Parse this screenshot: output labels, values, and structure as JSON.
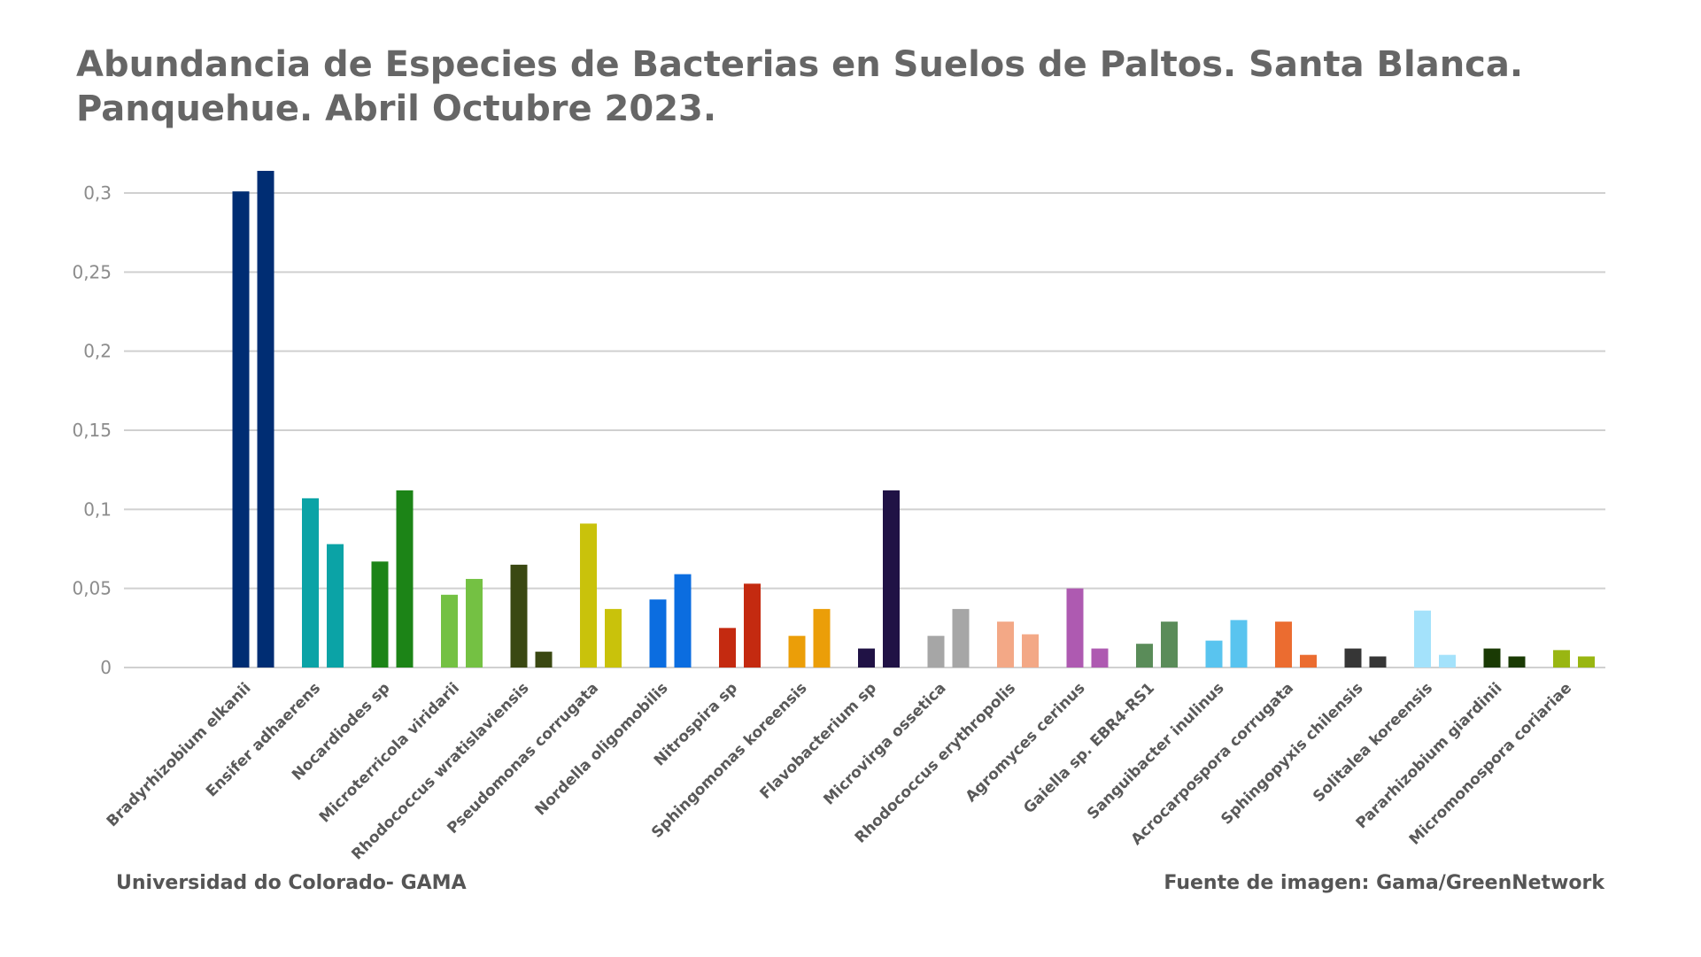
{
  "title_lines": [
    "Abundancia de Especies de Bacterias en Suelos de Paltos. Santa Blanca.",
    "Panquehue. Abril Octubre 2023."
  ],
  "footer": {
    "left": "Universidad do Colorado- GAMA",
    "right": "Fuente de imagen: Gama/GreenNetwork"
  },
  "chart_data": {
    "type": "bar",
    "title": "Abundancia de Especies de Bacterias en Suelos de Paltos. Santa Blanca. Panquehue. Abril Octubre 2023.",
    "xlabel": "",
    "ylabel": "",
    "ylim": [
      0,
      0.3
    ],
    "yticks": [
      0,
      0.05,
      0.1,
      0.15,
      0.2,
      0.25,
      0.3
    ],
    "ytick_labels": [
      "0",
      "0,05",
      "0,1",
      "0,15",
      "0,2",
      "0,25",
      "0,3"
    ],
    "grid": true,
    "legend": false,
    "categories": [
      "Bradyrhizobium elkanii",
      "Ensifer adhaerens",
      "Nocardiodes sp",
      "Microterricola viridarii",
      "Rhodococcus wratislaviensis",
      "Pseudomonas corrugata",
      "Nordella oligomobilis",
      "Nitrospira sp",
      "Sphingomonas koreensis",
      "Flavobacterium sp",
      "Microvirga ossetica",
      "Rhodococcus erythropolis",
      "Agromyces cerinus",
      "Gaiella sp. EBR4-RS1",
      "Sanguibacter inulinus",
      "Acrocarpospora corrugata",
      "Sphingopyxis chilensis",
      "Solitalea koreensis",
      "Pararhizobium giardinii",
      "Micromonospora coriariae"
    ],
    "series": [
      {
        "values": [
          0.301,
          0.107,
          0.067,
          0.046,
          0.065,
          0.091,
          0.043,
          0.025,
          0.02,
          0.012,
          0.02,
          0.029,
          0.05,
          0.015,
          0.017,
          0.029,
          0.012,
          0.036,
          0.012,
          0.011
        ]
      },
      {
        "values": [
          0.314,
          0.078,
          0.112,
          0.056,
          0.01,
          0.037,
          0.059,
          0.053,
          0.037,
          0.112,
          0.037,
          0.021,
          0.012,
          0.029,
          0.03,
          0.008,
          0.007,
          0.008,
          0.007,
          0.007
        ]
      }
    ],
    "colors": [
      "#002D73",
      "#0BA3A6",
      "#1C8417",
      "#74C143",
      "#3A4812",
      "#C9C20B",
      "#0B6DE0",
      "#C42A10",
      "#EB9E08",
      "#201245",
      "#A6A6A6",
      "#F3A886",
      "#AE5AB1",
      "#5A8C59",
      "#59C4EF",
      "#EB6C30",
      "#363636",
      "#A4E2FB",
      "#1A3A04",
      "#99B612"
    ]
  }
}
